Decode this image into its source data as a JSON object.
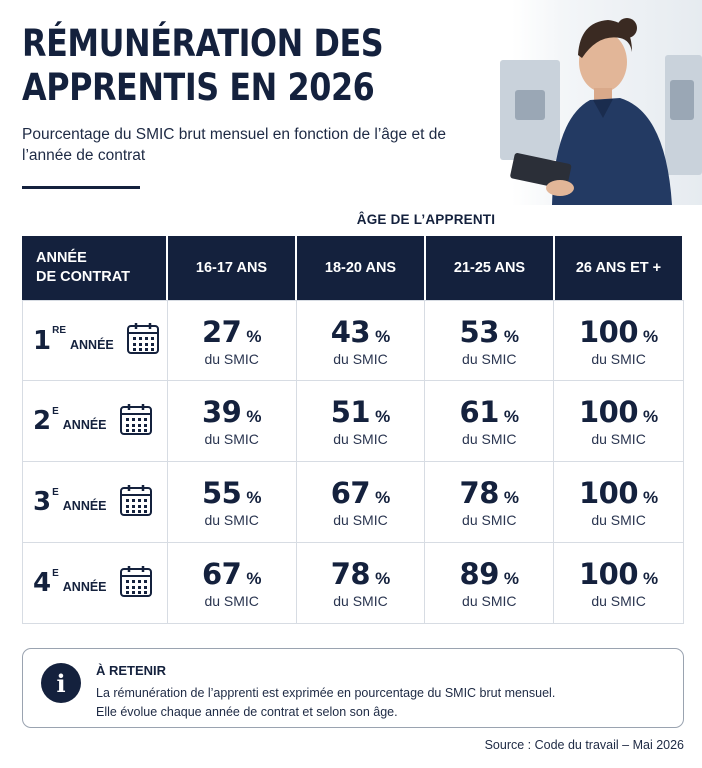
{
  "header": {
    "title": "RÉMUNÉRATION DES APPRENTIS EN 2026",
    "subtitle": "Pourcentage du SMIC brut mensuel en fonction de l’âge et de l’année de contrat"
  },
  "table": {
    "age_header": "ÂGE DE L’APPRENTI",
    "year_header": [
      "ANNÉE",
      "DE CONTRAT"
    ],
    "columns": [
      "16-17 ANS",
      "18-20 ANS",
      "21-25 ANS",
      "26 ANS ET +"
    ],
    "unit_label": "du SMIC",
    "percent_sign": "%",
    "rows": [
      {
        "num": "1",
        "sup": "RE",
        "label": "ANNÉE",
        "values": [
          "27",
          "43",
          "53",
          "100"
        ]
      },
      {
        "num": "2",
        "sup": "E",
        "label": "ANNÉE",
        "values": [
          "39",
          "51",
          "61",
          "100"
        ]
      },
      {
        "num": "3",
        "sup": "E",
        "label": "ANNÉE",
        "values": [
          "55",
          "67",
          "78",
          "100"
        ]
      },
      {
        "num": "4",
        "sup": "E",
        "label": "ANNÉE",
        "values": [
          "67",
          "78",
          "89",
          "100"
        ]
      }
    ]
  },
  "note": {
    "icon": "info-icon",
    "icon_glyph": "i",
    "title": "À RETENIR",
    "lines": [
      "La rémunération de l’apprenti est exprimée en pourcentage du SMIC brut mensuel.",
      "Elle évolue chaque année de contrat et selon son âge."
    ]
  },
  "source": "Source : Code du travail – Mai 2026",
  "colors": {
    "navy": "#14213d",
    "border": "#d7dce3"
  }
}
